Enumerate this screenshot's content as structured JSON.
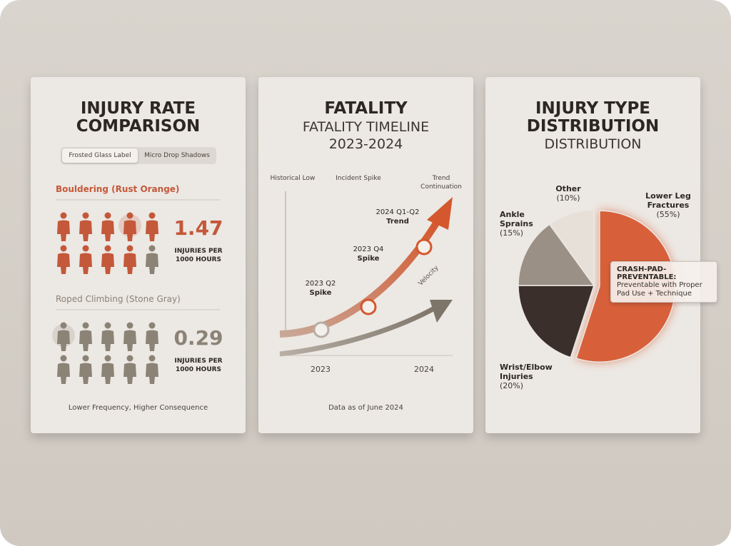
{
  "injury_rate": {
    "title": "INJURY RATE COMPARISON",
    "tabs": [
      "Frosted Glass Label",
      "Micro Drop Shadows"
    ],
    "groups": [
      {
        "label": "Bouldering (Rust Orange)",
        "value": "1.47",
        "unit": "INJURIES PER 1000 HOURS",
        "color": "#c4583a"
      },
      {
        "label": "Roped Climbing (Stone Gray)",
        "value": "0.29",
        "unit": "INJURIES PER 1000 HOURS",
        "color": "#8c8377"
      }
    ],
    "footnote": "Lower Frequency, Higher Consequence"
  },
  "fatality": {
    "title": "FATALITY",
    "subtitle": "FATALITY TIMELINE 2023-2024",
    "annotations": [
      "Historical Low",
      "Incident Spike",
      "Trend Continuation"
    ],
    "points": [
      {
        "label": "2023 Q2",
        "note": "Spike"
      },
      {
        "label": "2023 Q4",
        "note": "Spike"
      },
      {
        "label": "2024 Q1-Q2",
        "note": "Trend"
      }
    ],
    "x_labels": [
      "2023",
      "2024"
    ],
    "arrow_label": "Velocity",
    "footnote": "Data as of June 2024"
  },
  "chart_data": {
    "type": "pie",
    "title": "INJURY TYPE DISTRIBUTION",
    "subtitle": "DISTRIBUTION",
    "categories": [
      "Lower Leg Fractures",
      "Wrist/Elbow Injuries",
      "Ankle Sprains",
      "Other"
    ],
    "values": [
      55,
      20,
      15,
      10
    ],
    "value_labels": [
      "(55%)",
      "(20%)",
      "(15%)",
      "(10%)"
    ],
    "colors": [
      "#d7603a",
      "#3a2f2a",
      "#9b9086",
      "#e6e0d8"
    ],
    "callout": {
      "title": "CRASH-PAD-PREVENTABLE:",
      "text": "Preventable with Proper Pad Use + Technique"
    }
  }
}
